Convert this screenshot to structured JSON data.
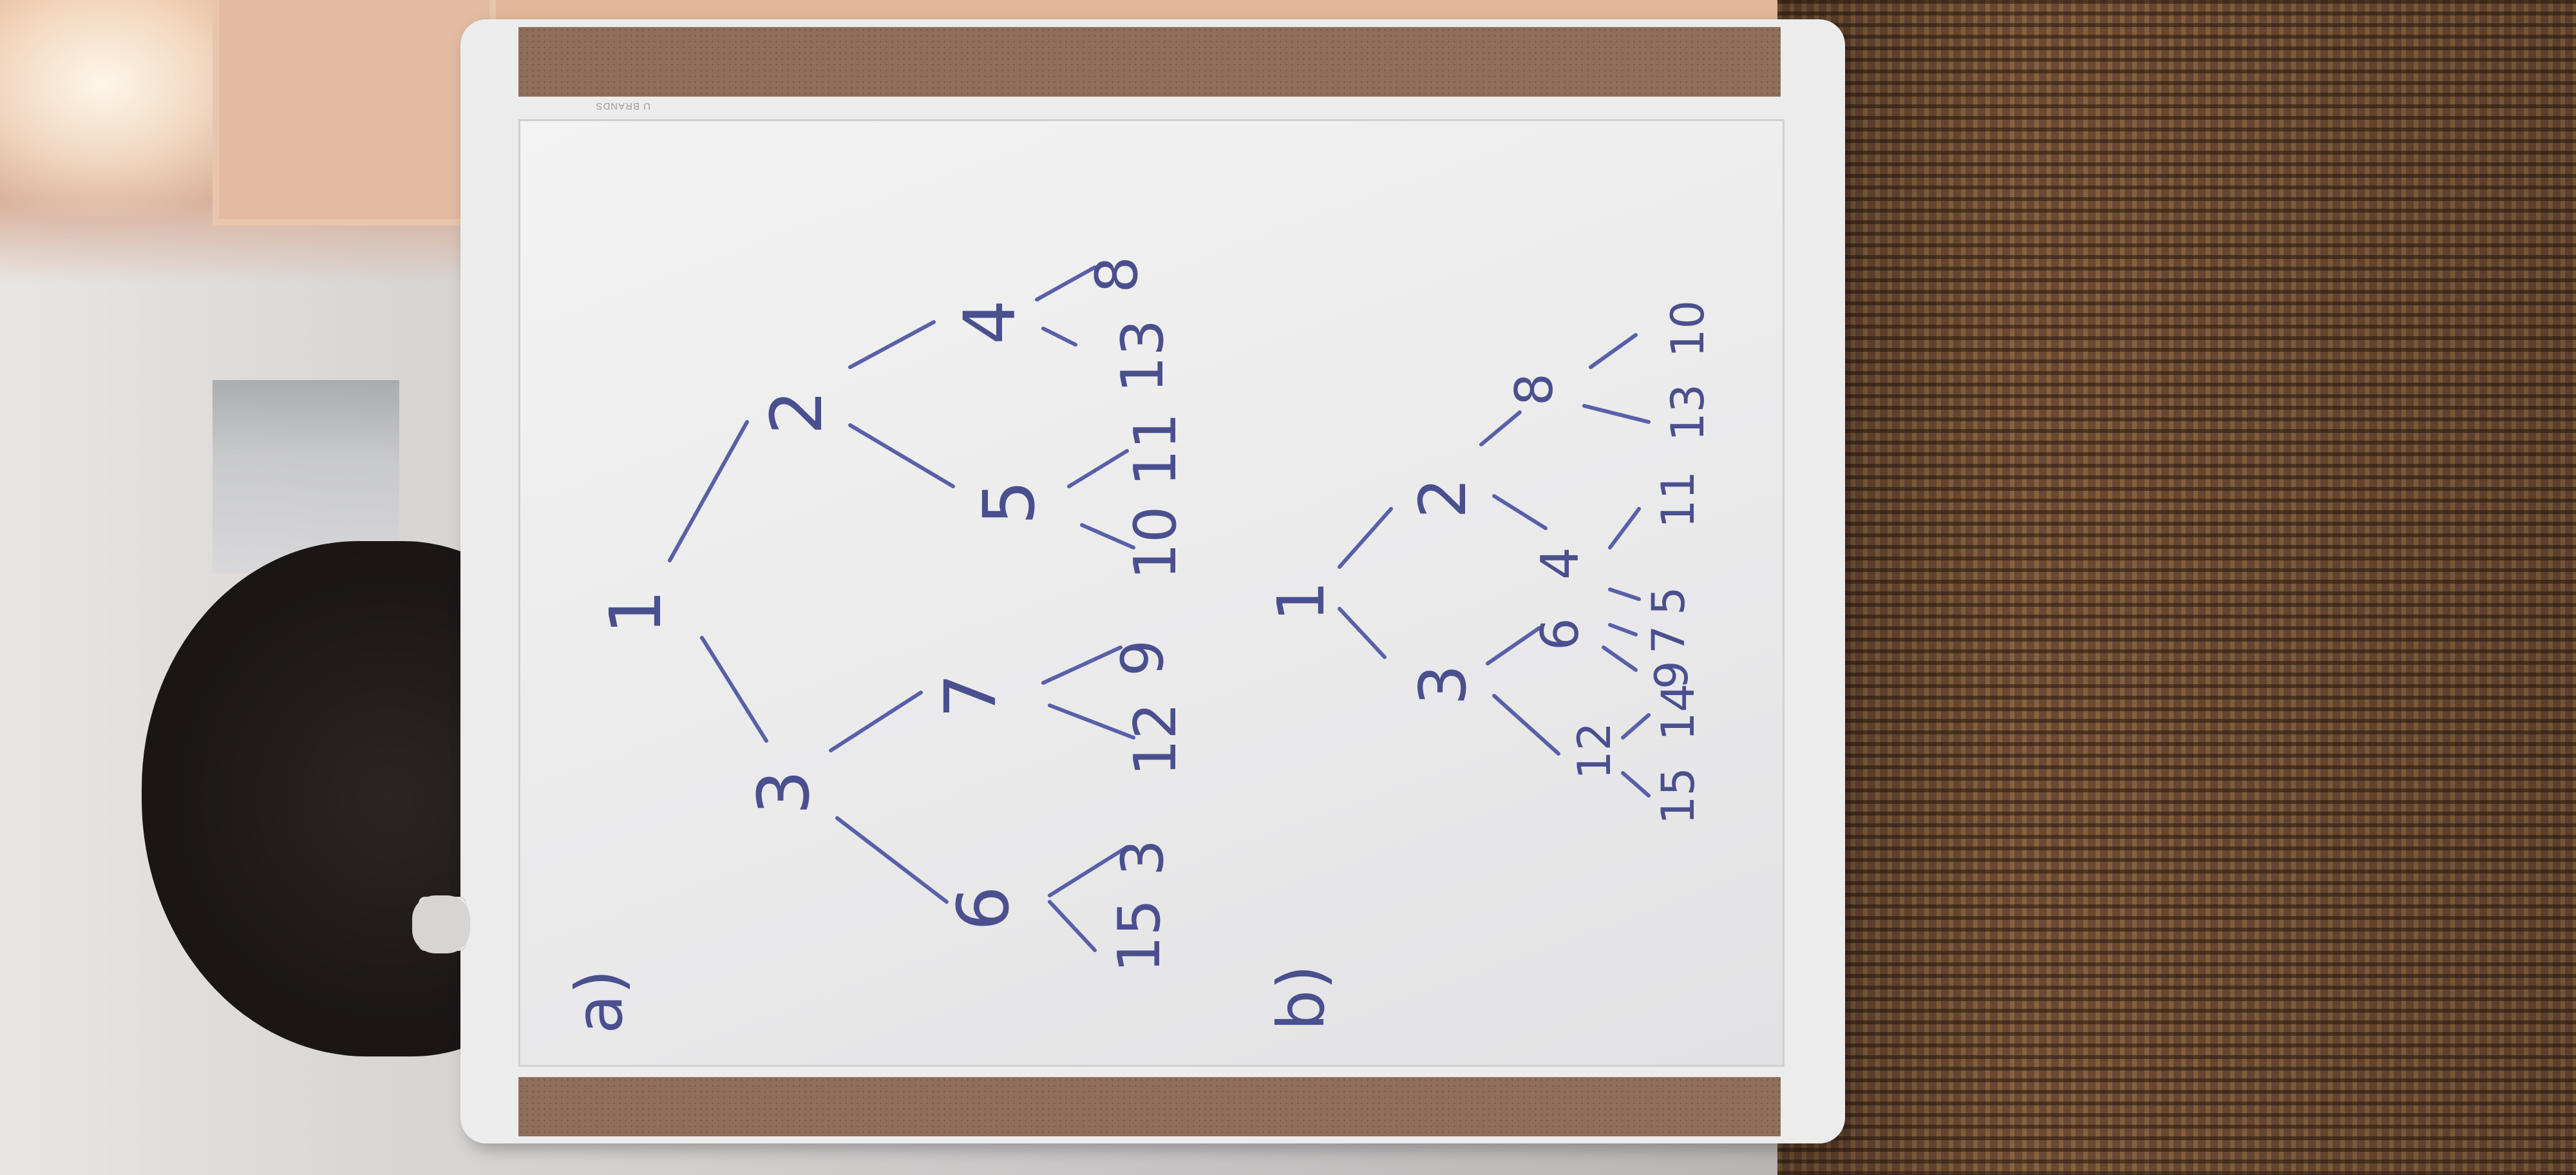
{
  "board": {
    "brand": "U BRANDS",
    "ink_color": "#5860a8",
    "part_a": {
      "label": "a)",
      "nodes": [
        "1",
        "3",
        "2",
        "6",
        "7",
        "5",
        "4",
        "15",
        "3",
        "12",
        "9",
        "10",
        "11",
        "13",
        "8"
      ]
    },
    "part_b": {
      "label": "b)",
      "nodes": [
        "1",
        "3",
        "2",
        "6",
        "4",
        "8",
        "12",
        "15",
        "14",
        "9",
        "7",
        "5",
        "11",
        "13",
        "10"
      ]
    }
  }
}
